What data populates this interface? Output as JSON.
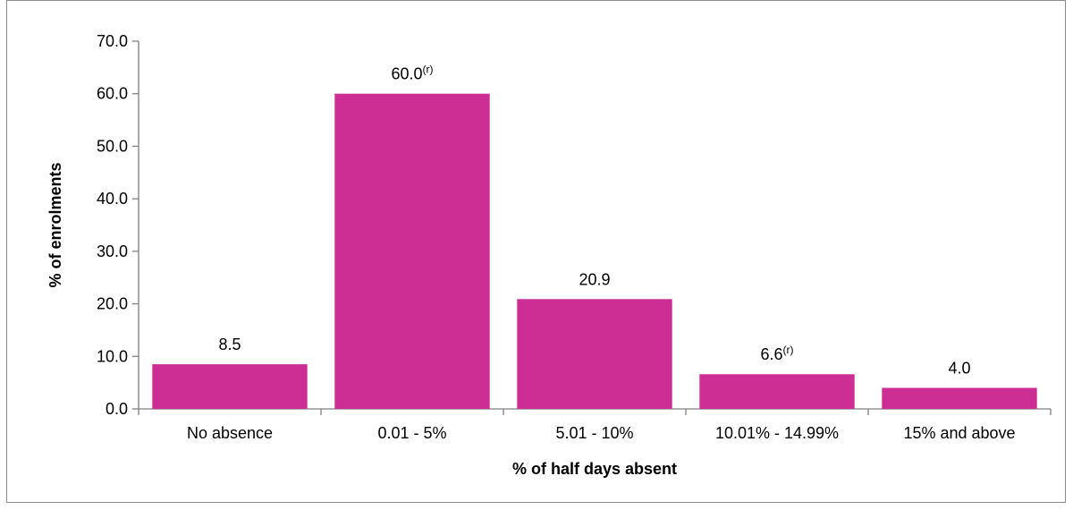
{
  "chart_data": {
    "type": "bar",
    "title": "",
    "xlabel": "% of half days absent",
    "ylabel": "% of enrolments",
    "ylim": [
      0,
      70
    ],
    "yticks": [
      "0.0",
      "10.0",
      "20.0",
      "30.0",
      "40.0",
      "50.0",
      "60.0",
      "70.0"
    ],
    "categories": [
      "No absence",
      "0.01 - 5%",
      "5.01 - 10%",
      "10.01% - 14.99%",
      "15% and above"
    ],
    "values": [
      8.5,
      60.0,
      20.9,
      6.6,
      4.0
    ],
    "data_labels": [
      "8.5",
      "60.0",
      "20.9",
      "6.6",
      "4.0"
    ],
    "data_label_notes": [
      "",
      "(r)",
      "",
      "(r)",
      ""
    ],
    "bar_color": "#cc2e93",
    "axis_color": "#808080",
    "grid": false,
    "legend": "none"
  }
}
